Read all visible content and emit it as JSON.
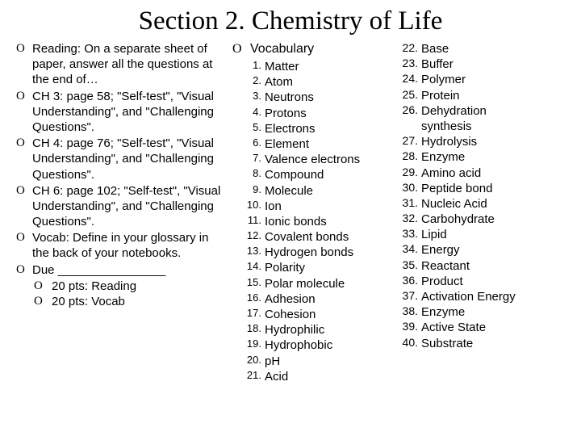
{
  "title": "Section 2. Chemistry of Life",
  "bullet_marker": "O",
  "reading": {
    "items": [
      "Reading: On a separate sheet of paper, answer all the questions at the end of…",
      "CH 3: page 58; \"Self-test\", \"Visual Understanding\", and \"Challenging Questions\".",
      "CH 4: page 76; \"Self-test\", \"Visual Understanding\", and \"Challenging Questions\".",
      "CH 6: page 102; \"Self-test\", \"Visual Understanding\", and \"Challenging Questions\".",
      "Vocab: Define in your glossary in the back of your notebooks.",
      "Due ________________"
    ],
    "sub_items": [
      "20 pts: Reading",
      "20 pts: Vocab"
    ]
  },
  "vocab": {
    "header": "Vocabulary",
    "col1": [
      {
        "n": "1.",
        "t": "Matter"
      },
      {
        "n": "2.",
        "t": "Atom"
      },
      {
        "n": "3.",
        "t": "Neutrons"
      },
      {
        "n": "4.",
        "t": "Protons"
      },
      {
        "n": "5.",
        "t": "Electrons"
      },
      {
        "n": "6.",
        "t": "Element"
      },
      {
        "n": "7.",
        "t": "Valence electrons"
      },
      {
        "n": "8.",
        "t": "Compound"
      },
      {
        "n": "9.",
        "t": "Molecule"
      },
      {
        "n": "10.",
        "t": "Ion"
      },
      {
        "n": "11.",
        "t": "Ionic bonds"
      },
      {
        "n": "12.",
        "t": "Covalent bonds"
      },
      {
        "n": "13.",
        "t": "Hydrogen bonds"
      },
      {
        "n": "14.",
        "t": "Polarity"
      },
      {
        "n": "15.",
        "t": "Polar molecule"
      },
      {
        "n": "16.",
        "t": "Adhesion"
      },
      {
        "n": "17.",
        "t": "Cohesion"
      },
      {
        "n": "18.",
        "t": "Hydrophilic"
      },
      {
        "n": "19.",
        "t": "Hydrophobic"
      },
      {
        "n": "20.",
        "t": "pH"
      },
      {
        "n": "21.",
        "t": "Acid"
      }
    ],
    "col2": [
      {
        "n": "22.",
        "t": "Base"
      },
      {
        "n": "23.",
        "t": "Buffer"
      },
      {
        "n": "24.",
        "t": "Polymer"
      },
      {
        "n": "25.",
        "t": "Protein"
      },
      {
        "n": "26.",
        "t": "Dehydration"
      },
      {
        "n": "",
        "t": "synthesis"
      },
      {
        "n": "27.",
        "t": "Hydrolysis"
      },
      {
        "n": "28.",
        "t": "Enzyme"
      },
      {
        "n": "29.",
        "t": "Amino acid"
      },
      {
        "n": "30.",
        "t": "Peptide bond"
      },
      {
        "n": "31.",
        "t": "Nucleic Acid"
      },
      {
        "n": "32.",
        "t": "Carbohydrate"
      },
      {
        "n": "33.",
        "t": "Lipid"
      },
      {
        "n": "34.",
        "t": "Energy"
      },
      {
        "n": "35.",
        "t": "Reactant"
      },
      {
        "n": "36.",
        "t": "Product"
      },
      {
        "n": "37.",
        "t": "Activation Energy"
      },
      {
        "n": "38.",
        "t": "Enzyme"
      },
      {
        "n": "39.",
        "t": "Active State"
      },
      {
        "n": "40.",
        "t": "Substrate"
      }
    ]
  }
}
